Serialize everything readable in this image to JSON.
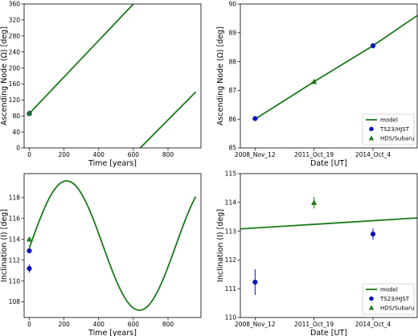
{
  "chart_data": [
    {
      "id": "tl",
      "type": "line",
      "xlabel": "Time [years]",
      "ylabel": "Ascending Node (Ω) [deg]",
      "xlim": [
        -30,
        990
      ],
      "ylim": [
        0,
        360
      ],
      "xticks": [
        0,
        200,
        400,
        600,
        800
      ],
      "yticks": [
        0,
        40,
        80,
        120,
        160,
        200,
        240,
        280,
        320,
        360
      ],
      "model_segments": [
        [
          [
            0,
            86
          ],
          [
            600,
            360
          ]
        ],
        [
          [
            640,
            0
          ],
          [
            960,
            140
          ]
        ]
      ],
      "points": [
        {
          "series": "TS23/HJST",
          "x": 0,
          "y": 86,
          "err": 0
        },
        {
          "series": "HDS/Subaru",
          "x": 0,
          "y": 87.3,
          "err": 0
        }
      ]
    },
    {
      "id": "tr",
      "type": "line",
      "xlabel": "Date [UT]",
      "ylabel": "Ascending Node (Ω) [deg]",
      "xlim": [
        -0.25,
        2.75
      ],
      "ylim": [
        85,
        90
      ],
      "xticks": [
        0,
        1,
        2
      ],
      "xticklabels": [
        "2008_Nov_12",
        "2011_Oct_19",
        "2014_Oct_4"
      ],
      "yticks": [
        85,
        86,
        87,
        88,
        89,
        90
      ],
      "model_segments": [
        [
          [
            0,
            86
          ],
          [
            1,
            87.3
          ],
          [
            2,
            88.55
          ],
          [
            2.75,
            89.6
          ]
        ]
      ],
      "points": [
        {
          "series": "TS23/HJST",
          "x": 0,
          "y": 86.02,
          "err": 0
        },
        {
          "series": "HDS/Subaru",
          "x": 1,
          "y": 87.3,
          "err": 0
        },
        {
          "series": "TS23/HJST",
          "x": 2,
          "y": 88.55,
          "err": 0
        }
      ],
      "legend": {
        "placement": "lower-right",
        "entries": [
          "model",
          "TS23/HJST",
          "HDS/Subaru"
        ]
      }
    },
    {
      "id": "bl",
      "type": "line",
      "xlabel": "Time [years]",
      "ylabel": "Inclination (I) [deg]",
      "xlim": [
        -30,
        990
      ],
      "ylim": [
        106.5,
        120.3
      ],
      "xticks": [
        0,
        200,
        400,
        600,
        800
      ],
      "yticks": [
        108,
        110,
        112,
        114,
        116,
        118
      ],
      "model_curve": {
        "center": 113.4,
        "amplitude": 6.2,
        "period": 840,
        "peak_x": 215,
        "x_start": 0,
        "x_end": 960
      },
      "points": [
        {
          "series": "TS23/HJST",
          "x": 0,
          "y": 111.2,
          "err": 0.4
        },
        {
          "series": "TS23/HJST",
          "x": 0,
          "y": 112.9,
          "err": 0.2
        },
        {
          "series": "HDS/Subaru",
          "x": 0,
          "y": 114.0,
          "err": 0.2
        }
      ]
    },
    {
      "id": "br",
      "type": "line",
      "xlabel": "Date [UT]",
      "ylabel": "Inclination (I) [deg]",
      "xlim": [
        -0.25,
        2.75
      ],
      "ylim": [
        110,
        115
      ],
      "xticks": [
        0,
        1,
        2
      ],
      "xticklabels": [
        "2008_Nov_12",
        "2011_Oct_19",
        "2014_Oct_4"
      ],
      "yticks": [
        110,
        111,
        112,
        113,
        114,
        115
      ],
      "model_segments": [
        [
          [
            -0.25,
            113.08
          ],
          [
            2.75,
            113.46
          ]
        ]
      ],
      "points": [
        {
          "series": "TS23/HJST",
          "x": 0,
          "y": 111.23,
          "err": 0.45
        },
        {
          "series": "HDS/Subaru",
          "x": 1,
          "y": 113.99,
          "err": 0.2
        },
        {
          "series": "TS23/HJST",
          "x": 2,
          "y": 112.9,
          "err": 0.2
        }
      ],
      "legend": {
        "placement": "lower-right",
        "entries": [
          "model",
          "TS23/HJST",
          "HDS/Subaru"
        ]
      }
    }
  ],
  "colors": {
    "model": "#1a7a1a",
    "TS23/HJST": "#0b14c8",
    "HDS/Subaru": "#1a7a1a"
  }
}
